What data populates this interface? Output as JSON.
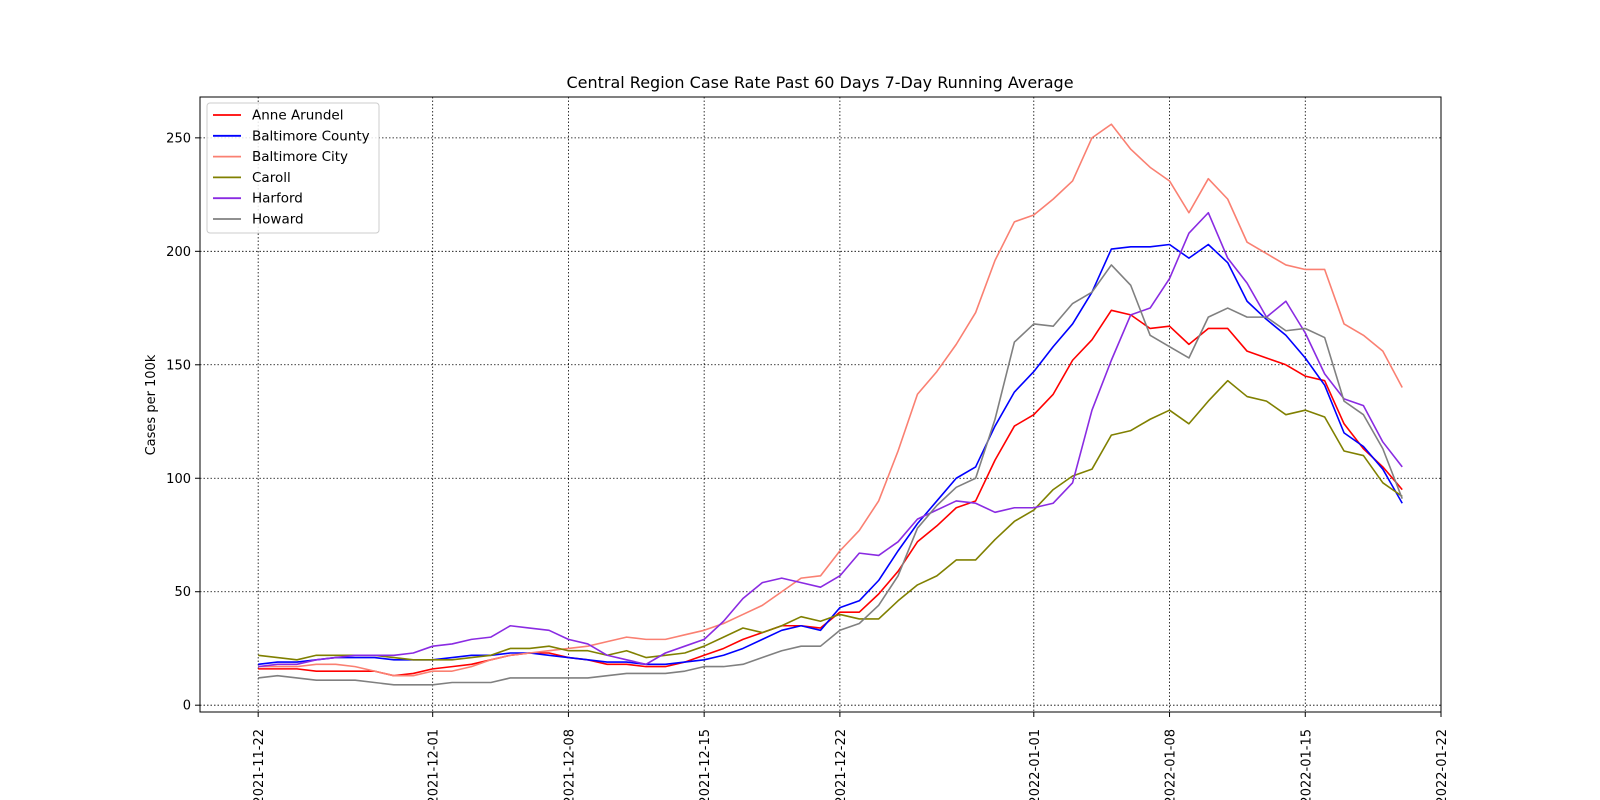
{
  "chart_data": {
    "type": "line",
    "title": "Central Region Case Rate  Past 60 Days 7-Day Running Average",
    "xlabel": "",
    "ylabel": "Cases per 100k",
    "x_start": "2021-11-22",
    "x_tick_labels": [
      "2021-11-22",
      "2021-12-01",
      "2021-12-08",
      "2021-12-15",
      "2021-12-22",
      "2022-01-01",
      "2022-01-08",
      "2022-01-15",
      "2022-01-22"
    ],
    "xlim": [
      "2021-11-19",
      "2022-01-22"
    ],
    "y_ticks": [
      0,
      50,
      100,
      150,
      200,
      250
    ],
    "ylim": [
      -3,
      268
    ],
    "grid": true,
    "legend_position": "top-left",
    "series": [
      {
        "name": "Anne Arundel",
        "color": "#ff0000",
        "values": [
          16,
          16,
          16,
          15,
          15,
          15,
          15,
          13,
          14,
          16,
          17,
          18,
          20,
          22,
          23,
          23,
          21,
          20,
          18,
          18,
          17,
          17,
          19,
          22,
          25,
          29,
          32,
          35,
          35,
          34,
          41,
          41,
          49,
          59,
          72,
          79,
          87,
          90,
          108,
          123,
          128,
          137,
          152,
          161,
          174,
          172,
          166,
          167,
          159,
          166,
          166,
          156,
          153,
          150,
          145,
          143,
          124,
          113,
          105,
          95
        ]
      },
      {
        "name": "Baltimore County",
        "color": "#0000ff",
        "values": [
          18,
          19,
          19,
          20,
          21,
          21,
          21,
          20,
          20,
          20,
          21,
          22,
          22,
          23,
          23,
          22,
          21,
          20,
          19,
          19,
          18,
          18,
          19,
          20,
          22,
          25,
          29,
          33,
          35,
          33,
          43,
          46,
          55,
          68,
          80,
          90,
          100,
          105,
          123,
          138,
          147,
          158,
          168,
          182,
          201,
          202,
          202,
          203,
          197,
          203,
          195,
          178,
          170,
          163,
          153,
          141,
          120,
          114,
          104,
          89
        ]
      },
      {
        "name": "Baltimore City",
        "color": "#fa8072",
        "values": [
          17,
          17,
          17,
          18,
          18,
          17,
          15,
          13,
          13,
          15,
          15,
          17,
          20,
          22,
          23,
          24,
          25,
          26,
          28,
          30,
          29,
          29,
          31,
          33,
          36,
          40,
          44,
          50,
          56,
          57,
          68,
          77,
          90,
          112,
          137,
          147,
          159,
          173,
          196,
          213,
          216,
          223,
          231,
          250,
          256,
          245,
          237,
          231,
          217,
          232,
          223,
          204,
          199,
          194,
          192,
          192,
          168,
          163,
          156,
          140
        ]
      },
      {
        "name": "Caroll",
        "color": "#808000",
        "values": [
          22,
          21,
          20,
          22,
          22,
          22,
          22,
          21,
          20,
          20,
          20,
          21,
          22,
          25,
          25,
          26,
          24,
          24,
          22,
          24,
          21,
          22,
          23,
          26,
          30,
          34,
          32,
          35,
          39,
          37,
          40,
          38,
          38,
          46,
          53,
          57,
          64,
          64,
          73,
          81,
          86,
          95,
          101,
          104,
          119,
          121,
          126,
          130,
          124,
          134,
          143,
          136,
          134,
          128,
          130,
          127,
          112,
          110,
          98,
          92
        ]
      },
      {
        "name": "Harford",
        "color": "#8a2be2",
        "values": [
          17,
          18,
          18,
          20,
          21,
          22,
          22,
          22,
          23,
          26,
          27,
          29,
          30,
          35,
          34,
          33,
          29,
          27,
          22,
          20,
          18,
          23,
          26,
          29,
          37,
          47,
          54,
          56,
          54,
          52,
          57,
          67,
          66,
          72,
          82,
          86,
          90,
          89,
          85,
          87,
          87,
          89,
          98,
          130,
          152,
          172,
          175,
          188,
          208,
          217,
          197,
          186,
          171,
          178,
          164,
          146,
          135,
          132,
          116,
          105
        ]
      },
      {
        "name": "Howard",
        "color": "#808080",
        "values": [
          12,
          13,
          12,
          11,
          11,
          11,
          10,
          9,
          9,
          9,
          10,
          10,
          10,
          12,
          12,
          12,
          12,
          12,
          13,
          14,
          14,
          14,
          15,
          17,
          17,
          18,
          21,
          24,
          26,
          26,
          33,
          36,
          44,
          57,
          78,
          88,
          96,
          100,
          126,
          160,
          168,
          167,
          177,
          182,
          194,
          185,
          163,
          158,
          153,
          171,
          175,
          171,
          171,
          165,
          166,
          162,
          134,
          128,
          113,
          91
        ]
      }
    ]
  }
}
